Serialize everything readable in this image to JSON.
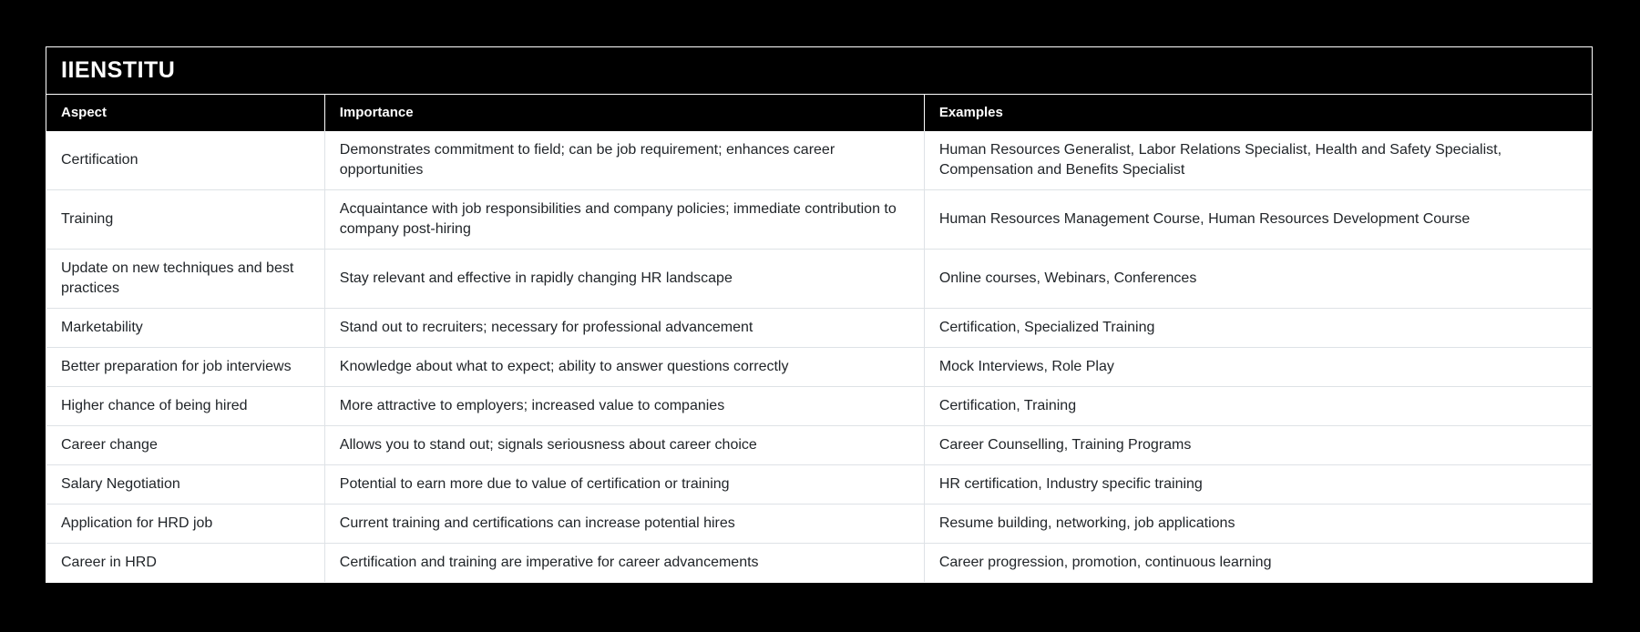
{
  "card": {
    "title": "IIENSTITU"
  },
  "table": {
    "columns": [
      {
        "key": "aspect",
        "label": "Aspect"
      },
      {
        "key": "importance",
        "label": "Importance"
      },
      {
        "key": "examples",
        "label": "Examples"
      }
    ],
    "rows": [
      {
        "aspect": "Certification",
        "importance": "Demonstrates commitment to field; can be job requirement; enhances career opportunities",
        "examples": "Human Resources Generalist, Labor Relations Specialist, Health and Safety Specialist, Compensation and Benefits Specialist"
      },
      {
        "aspect": "Training",
        "importance": "Acquaintance with job responsibilities and company policies; immediate contribution to company post-hiring",
        "examples": "Human Resources Management Course, Human Resources Development Course"
      },
      {
        "aspect": "Update on new techniques and best practices",
        "importance": "Stay relevant and effective in rapidly changing HR landscape",
        "examples": "Online courses, Webinars, Conferences"
      },
      {
        "aspect": "Marketability",
        "importance": "Stand out to recruiters; necessary for professional advancement",
        "examples": "Certification, Specialized Training"
      },
      {
        "aspect": "Better preparation for job interviews",
        "importance": "Knowledge about what to expect; ability to answer questions correctly",
        "examples": "Mock Interviews, Role Play"
      },
      {
        "aspect": "Higher chance of being hired",
        "importance": "More attractive to employers; increased value to companies",
        "examples": "Certification, Training"
      },
      {
        "aspect": "Career change",
        "importance": "Allows you to stand out; signals seriousness about career choice",
        "examples": "Career Counselling, Training Programs"
      },
      {
        "aspect": "Salary Negotiation",
        "importance": "Potential to earn more due to value of certification or training",
        "examples": "HR certification, Industry specific training"
      },
      {
        "aspect": "Application for HRD job",
        "importance": "Current training and certifications can increase potential hires",
        "examples": "Resume building, networking, job applications"
      },
      {
        "aspect": "Career in HRD",
        "importance": "Certification and training are imperative for career advancements",
        "examples": "Career progression, promotion, continuous learning"
      }
    ]
  },
  "colors": {
    "page_background": "#000000",
    "header_background": "#000000",
    "header_text": "#ffffff",
    "row_background": "#ffffff",
    "row_text": "#212529",
    "divider": "#dee2e6",
    "frame": "#ffffff"
  }
}
